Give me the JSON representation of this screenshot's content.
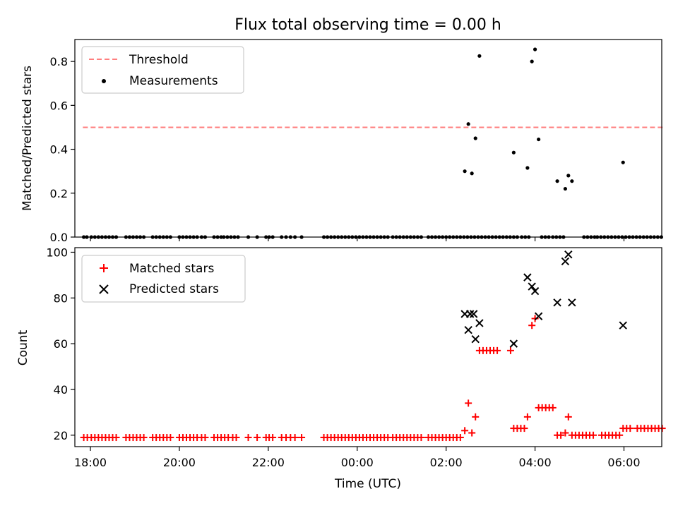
{
  "figure": {
    "title": "Flux total observing time = 0.00 h",
    "background": "#ffffff"
  },
  "chart_data": [
    {
      "type": "scatter",
      "panel": "top",
      "title": "Flux total observing time = 0.00 h",
      "xlabel": "",
      "ylabel": "Matched/Predicted stars",
      "x_unit": "hours since 18:00 UTC",
      "xlim": [
        -0.35,
        12.85
      ],
      "ylim": [
        0,
        0.9
      ],
      "yticks": [
        0,
        0.2,
        0.4,
        0.6,
        0.8
      ],
      "ytick_labels": [
        "0.0",
        "0.2",
        "0.4",
        "0.6",
        "0.8"
      ],
      "xticks": [
        0,
        2,
        4,
        6,
        8,
        10,
        12
      ],
      "xtick_labels_shown": false,
      "grid": false,
      "legend": {
        "location": "upper left",
        "entries": [
          "Threshold",
          "Measurements"
        ]
      },
      "threshold": {
        "name": "Threshold",
        "y": 0.5,
        "x_start": -0.17,
        "x_end": 12.87,
        "color": "#ff7f7f",
        "style": "dashed"
      },
      "measurements": {
        "name": "Measurements",
        "color": "#000000",
        "zero_x": [
          -0.15,
          -0.08,
          0.02,
          0.1,
          0.18,
          0.26,
          0.34,
          0.42,
          0.5,
          0.58,
          0.8,
          0.88,
          0.96,
          1.04,
          1.12,
          1.2,
          1.4,
          1.48,
          1.56,
          1.64,
          1.72,
          1.8,
          2.0,
          2.08,
          2.16,
          2.24,
          2.32,
          2.4,
          2.5,
          2.58,
          2.78,
          2.86,
          2.94,
          3.0,
          3.08,
          3.16,
          3.24,
          3.32,
          3.55,
          3.75,
          3.95,
          4.02,
          4.1,
          4.3,
          4.4,
          4.5,
          4.6,
          4.75,
          5.25,
          5.33,
          5.41,
          5.49,
          5.57,
          5.65,
          5.73,
          5.81,
          5.89,
          5.97,
          6.05,
          6.13,
          6.21,
          6.29,
          6.37,
          6.45,
          6.53,
          6.61,
          6.69,
          6.8,
          6.88,
          6.96,
          7.04,
          7.12,
          7.2,
          7.28,
          7.36,
          7.44,
          7.6,
          7.68,
          7.76,
          7.84,
          7.92,
          8.0,
          8.08,
          8.16,
          8.24,
          8.32,
          8.4,
          8.48,
          8.56,
          8.64,
          8.72,
          8.8,
          8.88,
          8.96,
          9.04,
          9.12,
          9.2,
          9.28,
          9.36,
          9.44,
          9.52,
          9.6,
          9.7,
          9.78,
          9.86,
          10.15,
          10.23,
          10.31,
          10.4,
          10.48,
          10.56,
          10.64,
          11.1,
          11.18,
          11.26,
          11.34,
          11.4,
          11.48,
          11.56,
          11.64,
          11.72,
          11.8,
          11.88,
          11.96,
          12.04,
          12.12,
          12.2,
          12.28,
          12.36,
          12.44,
          12.52,
          12.6,
          12.68,
          12.76,
          12.84
        ],
        "points": [
          {
            "x": 8.42,
            "y": 0.3
          },
          {
            "x": 8.5,
            "y": 0.515
          },
          {
            "x": 8.58,
            "y": 0.29
          },
          {
            "x": 8.66,
            "y": 0.45
          },
          {
            "x": 8.75,
            "y": 0.825
          },
          {
            "x": 9.52,
            "y": 0.385
          },
          {
            "x": 9.83,
            "y": 0.315
          },
          {
            "x": 9.93,
            "y": 0.8
          },
          {
            "x": 10.0,
            "y": 0.855
          },
          {
            "x": 10.08,
            "y": 0.445
          },
          {
            "x": 10.5,
            "y": 0.255
          },
          {
            "x": 10.68,
            "y": 0.22
          },
          {
            "x": 10.75,
            "y": 0.28
          },
          {
            "x": 10.83,
            "y": 0.255
          },
          {
            "x": 11.98,
            "y": 0.34
          }
        ]
      }
    },
    {
      "type": "scatter",
      "panel": "bottom",
      "xlabel": "Time (UTC)",
      "ylabel": "Count",
      "x_unit": "hours since 18:00 UTC",
      "xlim": [
        -0.35,
        12.85
      ],
      "ylim": [
        15,
        102
      ],
      "yticks": [
        20,
        40,
        60,
        80,
        100
      ],
      "ytick_labels": [
        "20",
        "40",
        "60",
        "80",
        "100"
      ],
      "xticks": [
        0,
        2,
        4,
        6,
        8,
        10,
        12
      ],
      "xtick_labels": [
        "18:00",
        "20:00",
        "22:00",
        "00:00",
        "02:00",
        "04:00",
        "06:00"
      ],
      "grid": false,
      "legend": {
        "location": "upper left",
        "entries": [
          "Matched stars",
          "Predicted stars"
        ]
      },
      "series": [
        {
          "name": "Matched stars",
          "marker": "plus",
          "color": "#ff0000",
          "points": [
            {
              "x": -0.15,
              "y": 19
            },
            {
              "x": -0.07,
              "y": 19
            },
            {
              "x": 0.02,
              "y": 19
            },
            {
              "x": 0.1,
              "y": 19
            },
            {
              "x": 0.18,
              "y": 19
            },
            {
              "x": 0.26,
              "y": 19
            },
            {
              "x": 0.34,
              "y": 19
            },
            {
              "x": 0.42,
              "y": 19
            },
            {
              "x": 0.5,
              "y": 19
            },
            {
              "x": 0.58,
              "y": 19
            },
            {
              "x": 0.8,
              "y": 19
            },
            {
              "x": 0.88,
              "y": 19
            },
            {
              "x": 0.96,
              "y": 19
            },
            {
              "x": 1.04,
              "y": 19
            },
            {
              "x": 1.12,
              "y": 19
            },
            {
              "x": 1.2,
              "y": 19
            },
            {
              "x": 1.4,
              "y": 19
            },
            {
              "x": 1.48,
              "y": 19
            },
            {
              "x": 1.56,
              "y": 19
            },
            {
              "x": 1.64,
              "y": 19
            },
            {
              "x": 1.72,
              "y": 19
            },
            {
              "x": 1.8,
              "y": 19
            },
            {
              "x": 2.0,
              "y": 19
            },
            {
              "x": 2.08,
              "y": 19
            },
            {
              "x": 2.16,
              "y": 19
            },
            {
              "x": 2.24,
              "y": 19
            },
            {
              "x": 2.32,
              "y": 19
            },
            {
              "x": 2.4,
              "y": 19
            },
            {
              "x": 2.5,
              "y": 19
            },
            {
              "x": 2.58,
              "y": 19
            },
            {
              "x": 2.78,
              "y": 19
            },
            {
              "x": 2.86,
              "y": 19
            },
            {
              "x": 2.94,
              "y": 19
            },
            {
              "x": 3.02,
              "y": 19
            },
            {
              "x": 3.1,
              "y": 19
            },
            {
              "x": 3.2,
              "y": 19
            },
            {
              "x": 3.28,
              "y": 19
            },
            {
              "x": 3.55,
              "y": 19
            },
            {
              "x": 3.75,
              "y": 19
            },
            {
              "x": 3.95,
              "y": 19
            },
            {
              "x": 4.02,
              "y": 19
            },
            {
              "x": 4.1,
              "y": 19
            },
            {
              "x": 4.3,
              "y": 19
            },
            {
              "x": 4.4,
              "y": 19
            },
            {
              "x": 4.5,
              "y": 19
            },
            {
              "x": 4.6,
              "y": 19
            },
            {
              "x": 4.75,
              "y": 19
            },
            {
              "x": 5.25,
              "y": 19
            },
            {
              "x": 5.33,
              "y": 19
            },
            {
              "x": 5.41,
              "y": 19
            },
            {
              "x": 5.49,
              "y": 19
            },
            {
              "x": 5.57,
              "y": 19
            },
            {
              "x": 5.65,
              "y": 19
            },
            {
              "x": 5.73,
              "y": 19
            },
            {
              "x": 5.81,
              "y": 19
            },
            {
              "x": 5.89,
              "y": 19
            },
            {
              "x": 5.97,
              "y": 19
            },
            {
              "x": 6.05,
              "y": 19
            },
            {
              "x": 6.13,
              "y": 19
            },
            {
              "x": 6.21,
              "y": 19
            },
            {
              "x": 6.29,
              "y": 19
            },
            {
              "x": 6.37,
              "y": 19
            },
            {
              "x": 6.45,
              "y": 19
            },
            {
              "x": 6.53,
              "y": 19
            },
            {
              "x": 6.61,
              "y": 19
            },
            {
              "x": 6.69,
              "y": 19
            },
            {
              "x": 6.8,
              "y": 19
            },
            {
              "x": 6.88,
              "y": 19
            },
            {
              "x": 6.96,
              "y": 19
            },
            {
              "x": 7.04,
              "y": 19
            },
            {
              "x": 7.12,
              "y": 19
            },
            {
              "x": 7.2,
              "y": 19
            },
            {
              "x": 7.28,
              "y": 19
            },
            {
              "x": 7.36,
              "y": 19
            },
            {
              "x": 7.44,
              "y": 19
            },
            {
              "x": 7.6,
              "y": 19
            },
            {
              "x": 7.68,
              "y": 19
            },
            {
              "x": 7.76,
              "y": 19
            },
            {
              "x": 7.84,
              "y": 19
            },
            {
              "x": 7.92,
              "y": 19
            },
            {
              "x": 8.0,
              "y": 19
            },
            {
              "x": 8.08,
              "y": 19
            },
            {
              "x": 8.16,
              "y": 19
            },
            {
              "x": 8.24,
              "y": 19
            },
            {
              "x": 8.32,
              "y": 19
            },
            {
              "x": 8.42,
              "y": 22
            },
            {
              "x": 8.5,
              "y": 34
            },
            {
              "x": 8.58,
              "y": 21
            },
            {
              "x": 8.66,
              "y": 28
            },
            {
              "x": 8.75,
              "y": 57
            },
            {
              "x": 8.83,
              "y": 57
            },
            {
              "x": 8.91,
              "y": 57
            },
            {
              "x": 8.99,
              "y": 57
            },
            {
              "x": 9.07,
              "y": 57
            },
            {
              "x": 9.15,
              "y": 57
            },
            {
              "x": 9.45,
              "y": 57
            },
            {
              "x": 9.52,
              "y": 23
            },
            {
              "x": 9.6,
              "y": 23
            },
            {
              "x": 9.68,
              "y": 23
            },
            {
              "x": 9.76,
              "y": 23
            },
            {
              "x": 9.83,
              "y": 28
            },
            {
              "x": 9.93,
              "y": 68
            },
            {
              "x": 10.0,
              "y": 71
            },
            {
              "x": 10.08,
              "y": 32
            },
            {
              "x": 10.16,
              "y": 32
            },
            {
              "x": 10.24,
              "y": 32
            },
            {
              "x": 10.32,
              "y": 32
            },
            {
              "x": 10.4,
              "y": 32
            },
            {
              "x": 10.5,
              "y": 20
            },
            {
              "x": 10.58,
              "y": 20
            },
            {
              "x": 10.68,
              "y": 21
            },
            {
              "x": 10.75,
              "y": 28
            },
            {
              "x": 10.83,
              "y": 20
            },
            {
              "x": 10.91,
              "y": 20
            },
            {
              "x": 10.99,
              "y": 20
            },
            {
              "x": 11.07,
              "y": 20
            },
            {
              "x": 11.15,
              "y": 20
            },
            {
              "x": 11.23,
              "y": 20
            },
            {
              "x": 11.31,
              "y": 20
            },
            {
              "x": 11.5,
              "y": 20
            },
            {
              "x": 11.58,
              "y": 20
            },
            {
              "x": 11.66,
              "y": 20
            },
            {
              "x": 11.74,
              "y": 20
            },
            {
              "x": 11.82,
              "y": 20
            },
            {
              "x": 11.9,
              "y": 20
            },
            {
              "x": 11.98,
              "y": 23
            },
            {
              "x": 12.06,
              "y": 23
            },
            {
              "x": 12.14,
              "y": 23
            },
            {
              "x": 12.3,
              "y": 23
            },
            {
              "x": 12.38,
              "y": 23
            },
            {
              "x": 12.46,
              "y": 23
            },
            {
              "x": 12.54,
              "y": 23
            },
            {
              "x": 12.62,
              "y": 23
            },
            {
              "x": 12.7,
              "y": 23
            },
            {
              "x": 12.78,
              "y": 23
            },
            {
              "x": 12.86,
              "y": 23
            }
          ]
        },
        {
          "name": "Predicted stars",
          "marker": "x",
          "color": "#000000",
          "points": [
            {
              "x": 8.42,
              "y": 73
            },
            {
              "x": 8.5,
              "y": 66
            },
            {
              "x": 8.54,
              "y": 73
            },
            {
              "x": 8.62,
              "y": 73
            },
            {
              "x": 8.66,
              "y": 62
            },
            {
              "x": 8.75,
              "y": 69
            },
            {
              "x": 9.52,
              "y": 60
            },
            {
              "x": 9.83,
              "y": 89
            },
            {
              "x": 9.93,
              "y": 85
            },
            {
              "x": 10.0,
              "y": 83
            },
            {
              "x": 10.08,
              "y": 72
            },
            {
              "x": 10.5,
              "y": 78
            },
            {
              "x": 10.68,
              "y": 96
            },
            {
              "x": 10.75,
              "y": 99
            },
            {
              "x": 10.83,
              "y": 78
            },
            {
              "x": 11.98,
              "y": 68
            }
          ]
        }
      ]
    }
  ]
}
